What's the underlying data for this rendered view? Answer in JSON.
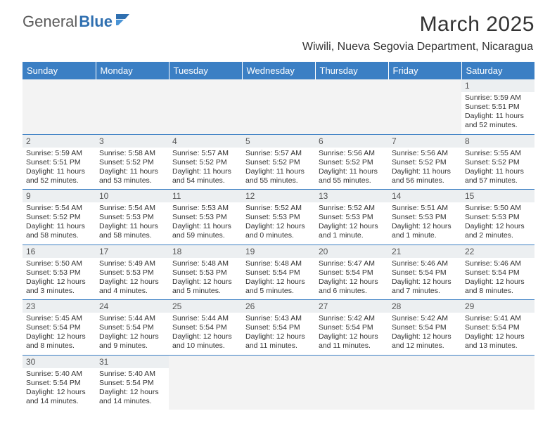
{
  "logo": {
    "text_a": "General",
    "text_b": "Blue"
  },
  "title": "March 2025",
  "location": "Wiwili, Nueva Segovia Department, Nicaragua",
  "colors": {
    "header_bg": "#3b7fc4",
    "header_fg": "#ffffff",
    "grid_line": "#3b7fc4",
    "daynum_bg": "#eceff1",
    "empty_bg": "#f3f3f3",
    "text": "#333333"
  },
  "day_headers": [
    "Sunday",
    "Monday",
    "Tuesday",
    "Wednesday",
    "Thursday",
    "Friday",
    "Saturday"
  ],
  "weeks": [
    [
      null,
      null,
      null,
      null,
      null,
      null,
      {
        "n": "1",
        "sr": "5:59 AM",
        "ss": "5:51 PM",
        "dl": "11 hours and 52 minutes."
      }
    ],
    [
      {
        "n": "2",
        "sr": "5:59 AM",
        "ss": "5:51 PM",
        "dl": "11 hours and 52 minutes."
      },
      {
        "n": "3",
        "sr": "5:58 AM",
        "ss": "5:52 PM",
        "dl": "11 hours and 53 minutes."
      },
      {
        "n": "4",
        "sr": "5:57 AM",
        "ss": "5:52 PM",
        "dl": "11 hours and 54 minutes."
      },
      {
        "n": "5",
        "sr": "5:57 AM",
        "ss": "5:52 PM",
        "dl": "11 hours and 55 minutes."
      },
      {
        "n": "6",
        "sr": "5:56 AM",
        "ss": "5:52 PM",
        "dl": "11 hours and 55 minutes."
      },
      {
        "n": "7",
        "sr": "5:56 AM",
        "ss": "5:52 PM",
        "dl": "11 hours and 56 minutes."
      },
      {
        "n": "8",
        "sr": "5:55 AM",
        "ss": "5:52 PM",
        "dl": "11 hours and 57 minutes."
      }
    ],
    [
      {
        "n": "9",
        "sr": "5:54 AM",
        "ss": "5:52 PM",
        "dl": "11 hours and 58 minutes."
      },
      {
        "n": "10",
        "sr": "5:54 AM",
        "ss": "5:53 PM",
        "dl": "11 hours and 58 minutes."
      },
      {
        "n": "11",
        "sr": "5:53 AM",
        "ss": "5:53 PM",
        "dl": "11 hours and 59 minutes."
      },
      {
        "n": "12",
        "sr": "5:52 AM",
        "ss": "5:53 PM",
        "dl": "12 hours and 0 minutes."
      },
      {
        "n": "13",
        "sr": "5:52 AM",
        "ss": "5:53 PM",
        "dl": "12 hours and 1 minute."
      },
      {
        "n": "14",
        "sr": "5:51 AM",
        "ss": "5:53 PM",
        "dl": "12 hours and 1 minute."
      },
      {
        "n": "15",
        "sr": "5:50 AM",
        "ss": "5:53 PM",
        "dl": "12 hours and 2 minutes."
      }
    ],
    [
      {
        "n": "16",
        "sr": "5:50 AM",
        "ss": "5:53 PM",
        "dl": "12 hours and 3 minutes."
      },
      {
        "n": "17",
        "sr": "5:49 AM",
        "ss": "5:53 PM",
        "dl": "12 hours and 4 minutes."
      },
      {
        "n": "18",
        "sr": "5:48 AM",
        "ss": "5:53 PM",
        "dl": "12 hours and 5 minutes."
      },
      {
        "n": "19",
        "sr": "5:48 AM",
        "ss": "5:54 PM",
        "dl": "12 hours and 5 minutes."
      },
      {
        "n": "20",
        "sr": "5:47 AM",
        "ss": "5:54 PM",
        "dl": "12 hours and 6 minutes."
      },
      {
        "n": "21",
        "sr": "5:46 AM",
        "ss": "5:54 PM",
        "dl": "12 hours and 7 minutes."
      },
      {
        "n": "22",
        "sr": "5:46 AM",
        "ss": "5:54 PM",
        "dl": "12 hours and 8 minutes."
      }
    ],
    [
      {
        "n": "23",
        "sr": "5:45 AM",
        "ss": "5:54 PM",
        "dl": "12 hours and 8 minutes."
      },
      {
        "n": "24",
        "sr": "5:44 AM",
        "ss": "5:54 PM",
        "dl": "12 hours and 9 minutes."
      },
      {
        "n": "25",
        "sr": "5:44 AM",
        "ss": "5:54 PM",
        "dl": "12 hours and 10 minutes."
      },
      {
        "n": "26",
        "sr": "5:43 AM",
        "ss": "5:54 PM",
        "dl": "12 hours and 11 minutes."
      },
      {
        "n": "27",
        "sr": "5:42 AM",
        "ss": "5:54 PM",
        "dl": "12 hours and 11 minutes."
      },
      {
        "n": "28",
        "sr": "5:42 AM",
        "ss": "5:54 PM",
        "dl": "12 hours and 12 minutes."
      },
      {
        "n": "29",
        "sr": "5:41 AM",
        "ss": "5:54 PM",
        "dl": "12 hours and 13 minutes."
      }
    ],
    [
      {
        "n": "30",
        "sr": "5:40 AM",
        "ss": "5:54 PM",
        "dl": "12 hours and 14 minutes."
      },
      {
        "n": "31",
        "sr": "5:40 AM",
        "ss": "5:54 PM",
        "dl": "12 hours and 14 minutes."
      },
      null,
      null,
      null,
      null,
      null
    ]
  ],
  "labels": {
    "sunrise": "Sunrise:",
    "sunset": "Sunset:",
    "daylight": "Daylight:"
  }
}
